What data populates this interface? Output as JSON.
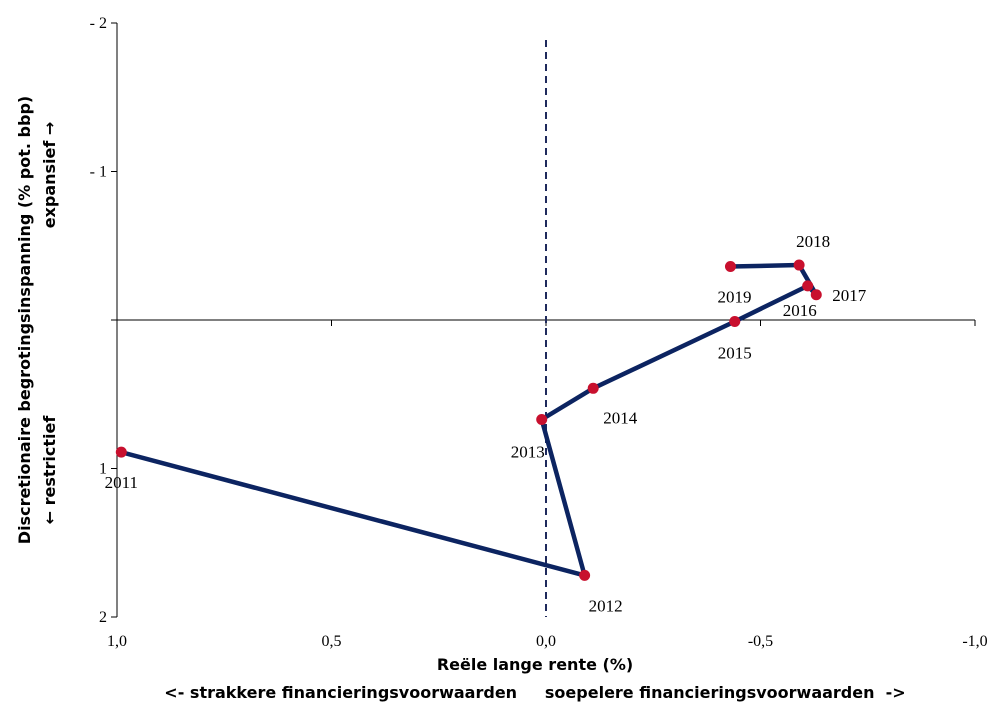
{
  "chart_data": {
    "type": "line",
    "xlabel": "Reële lange rente (%)",
    "xlabel_sub": "<- strakkere financieringsvoorwaarden     soepelere financieringsvoorwaarden  ->",
    "ylabel": "Discretionaire begrotingsinspanning (% pot. bbp)",
    "ylabel_top": "expansief →",
    "ylabel_bottom": "← restrictief",
    "xlim": [
      1.0,
      -1.0
    ],
    "ylim": [
      2,
      -2
    ],
    "x_reversed": true,
    "y_reversed": true,
    "x_ticks": [
      1.0,
      0.5,
      0.0,
      -0.5,
      -1.0
    ],
    "x_tick_labels": [
      "1,0",
      "0,5",
      "0,0",
      "-0,5",
      "-1,0"
    ],
    "y_ticks": [
      -2,
      -1,
      0,
      1,
      2
    ],
    "y_tick_labels": [
      "- 2",
      "- 1",
      "",
      "1",
      "2"
    ],
    "vline_x": 0.0,
    "grid": false,
    "colors": {
      "line": "#0c2461",
      "marker": "#c8102e",
      "vline": "#1f2a5c"
    },
    "series": [
      {
        "points": [
          {
            "label": "2011",
            "x": 0.99,
            "y": 0.89
          },
          {
            "label": "2012",
            "x": -0.09,
            "y": 1.72
          },
          {
            "label": "2013",
            "x": 0.01,
            "y": 0.67
          },
          {
            "label": "2014",
            "x": -0.11,
            "y": 0.46
          },
          {
            "label": "2015",
            "x": -0.44,
            "y": 0.01
          },
          {
            "label": "2016",
            "x": -0.61,
            "y": -0.23
          },
          {
            "label": "2017",
            "x": -0.63,
            "y": -0.17
          },
          {
            "label": "2018",
            "x": -0.59,
            "y": -0.37
          },
          {
            "label": "2019",
            "x": -0.43,
            "y": -0.36
          }
        ]
      }
    ]
  }
}
